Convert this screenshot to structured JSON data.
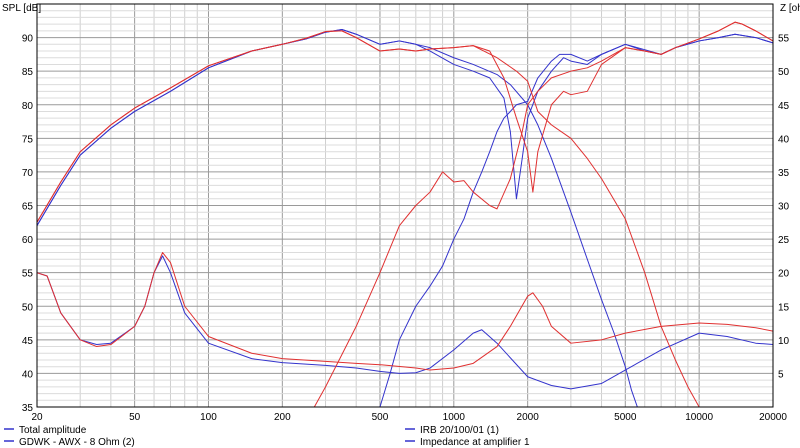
{
  "chart_data": {
    "type": "line",
    "x_scale": "log",
    "xlim": [
      20,
      20000
    ],
    "ylim_left": [
      35,
      95
    ],
    "ylim_right": [
      0,
      60
    ],
    "grid": true,
    "legend_placement": "bottom",
    "left_axis_label": "SPL [dB]",
    "right_axis_label": "Z [ohm]",
    "x_ticks": [
      20,
      50,
      100,
      200,
      500,
      1000,
      2000,
      5000,
      10000,
      20000
    ],
    "x_tick_labels": [
      "20",
      "50",
      "100",
      "200",
      "500",
      "1000",
      "2000",
      "5000",
      "10000",
      "20000"
    ],
    "y_left_ticks": [
      35,
      40,
      45,
      50,
      55,
      60,
      65,
      70,
      75,
      80,
      85,
      90
    ],
    "y_left_tick_labels": [
      "35",
      "40",
      "45",
      "50",
      "55",
      "60",
      "65",
      "70",
      "75",
      "80",
      "85",
      "90"
    ],
    "y_right_ticks": [
      5,
      10,
      15,
      20,
      25,
      30,
      35,
      40,
      45,
      50,
      55
    ],
    "y_right_tick_labels": [
      "5",
      "10",
      "15",
      "20",
      "25",
      "30",
      "35",
      "40",
      "45",
      "50",
      "55"
    ],
    "legend": [
      {
        "name": "Total amplitude",
        "color": "#3333cc"
      },
      {
        "name": "GDWK - AWX - 8 Ohm (2)",
        "color": "#3333cc"
      },
      {
        "name": "IRB 20/100/01 (1)",
        "color": "#3333cc"
      },
      {
        "name": "Impedance at amplifier 1",
        "color": "#3333cc"
      }
    ],
    "series": [
      {
        "color": "#3333cc",
        "axis": "left",
        "points": [
          [
            20,
            62
          ],
          [
            25,
            68
          ],
          [
            30,
            72.5
          ],
          [
            40,
            76.5
          ],
          [
            50,
            79
          ],
          [
            70,
            82
          ],
          [
            100,
            85.5
          ],
          [
            150,
            88
          ],
          [
            200,
            89
          ],
          [
            250,
            89.8
          ],
          [
            300,
            90.8
          ],
          [
            350,
            91.2
          ],
          [
            400,
            90.5
          ],
          [
            500,
            89
          ],
          [
            600,
            89.5
          ],
          [
            700,
            89
          ],
          [
            800,
            88.5
          ],
          [
            1000,
            87
          ],
          [
            1200,
            86
          ],
          [
            1500,
            84.5
          ],
          [
            1700,
            83
          ],
          [
            2000,
            80
          ],
          [
            2200,
            77
          ],
          [
            2500,
            72
          ],
          [
            3000,
            64
          ],
          [
            3500,
            57
          ],
          [
            4000,
            51
          ],
          [
            4500,
            46
          ],
          [
            5000,
            41
          ],
          [
            5300,
            37.5
          ],
          [
            5600,
            35
          ]
        ]
      },
      {
        "color": "#3333cc",
        "axis": "left",
        "points": [
          [
            500,
            35
          ],
          [
            550,
            40
          ],
          [
            600,
            45
          ],
          [
            700,
            50
          ],
          [
            800,
            53
          ],
          [
            900,
            56
          ],
          [
            1000,
            60
          ],
          [
            1100,
            63
          ],
          [
            1200,
            67
          ],
          [
            1300,
            70
          ],
          [
            1400,
            73
          ],
          [
            1500,
            76
          ],
          [
            1600,
            78
          ],
          [
            1700,
            79
          ],
          [
            1800,
            80
          ],
          [
            2000,
            80.5
          ],
          [
            2200,
            84
          ],
          [
            2500,
            86.5
          ],
          [
            2700,
            87.5
          ],
          [
            3000,
            87.5
          ],
          [
            3500,
            86.5
          ],
          [
            4000,
            87.5
          ],
          [
            5000,
            89
          ],
          [
            6000,
            88.2
          ],
          [
            7000,
            87.5
          ],
          [
            8000,
            88.5
          ],
          [
            10000,
            89.5
          ],
          [
            12000,
            90
          ],
          [
            14000,
            90.5
          ],
          [
            17000,
            90
          ],
          [
            20000,
            89.2
          ]
        ]
      },
      {
        "color": "#3333cc",
        "axis": "left",
        "points": [
          [
            20,
            62
          ],
          [
            25,
            68
          ],
          [
            30,
            72.5
          ],
          [
            40,
            76.5
          ],
          [
            50,
            79
          ],
          [
            70,
            82
          ],
          [
            100,
            85.5
          ],
          [
            150,
            88
          ],
          [
            200,
            89
          ],
          [
            250,
            89.8
          ],
          [
            300,
            90.8
          ],
          [
            350,
            91.2
          ],
          [
            400,
            90.5
          ],
          [
            500,
            89
          ],
          [
            600,
            89.5
          ],
          [
            700,
            89
          ],
          [
            800,
            88
          ],
          [
            1000,
            86
          ],
          [
            1200,
            85
          ],
          [
            1400,
            84
          ],
          [
            1600,
            81
          ],
          [
            1700,
            76
          ],
          [
            1800,
            66
          ],
          [
            1900,
            72
          ],
          [
            2000,
            78
          ],
          [
            2200,
            82
          ],
          [
            2500,
            85
          ],
          [
            2800,
            87
          ],
          [
            3000,
            86.5
          ],
          [
            3500,
            86
          ],
          [
            4000,
            87.5
          ],
          [
            5000,
            89
          ],
          [
            6000,
            88
          ],
          [
            7000,
            87.5
          ],
          [
            8000,
            88.5
          ],
          [
            10000,
            89.5
          ],
          [
            12000,
            90
          ],
          [
            14000,
            90.5
          ],
          [
            17000,
            90
          ],
          [
            20000,
            89.2
          ]
        ]
      },
      {
        "color": "#3333cc",
        "axis": "right",
        "points": [
          [
            20,
            20
          ],
          [
            22,
            19.5
          ],
          [
            25,
            14
          ],
          [
            30,
            10
          ],
          [
            35,
            9.3
          ],
          [
            40,
            9.5
          ],
          [
            50,
            12
          ],
          [
            55,
            15
          ],
          [
            60,
            20
          ],
          [
            65,
            22.5
          ],
          [
            70,
            20
          ],
          [
            80,
            14
          ],
          [
            100,
            9.5
          ],
          [
            150,
            7.2
          ],
          [
            200,
            6.6
          ],
          [
            300,
            6.2
          ],
          [
            400,
            5.8
          ],
          [
            500,
            5.3
          ],
          [
            600,
            5
          ],
          [
            700,
            5.1
          ],
          [
            800,
            5.8
          ],
          [
            1000,
            8.5
          ],
          [
            1200,
            11
          ],
          [
            1300,
            11.5
          ],
          [
            1500,
            9.5
          ],
          [
            2000,
            4.5
          ],
          [
            2500,
            3.2
          ],
          [
            3000,
            2.7
          ],
          [
            4000,
            3.5
          ],
          [
            5000,
            5.5
          ],
          [
            7000,
            8.5
          ],
          [
            10000,
            11
          ],
          [
            13000,
            10.5
          ],
          [
            17000,
            9.5
          ],
          [
            20000,
            9.3
          ]
        ]
      },
      {
        "color": "#e03030",
        "axis": "left",
        "points": [
          [
            20,
            62.5
          ],
          [
            25,
            68.5
          ],
          [
            30,
            73
          ],
          [
            40,
            77
          ],
          [
            50,
            79.5
          ],
          [
            70,
            82.5
          ],
          [
            100,
            85.8
          ],
          [
            150,
            88
          ],
          [
            200,
            89
          ],
          [
            250,
            89.9
          ],
          [
            300,
            90.9
          ],
          [
            350,
            91
          ],
          [
            400,
            90
          ],
          [
            500,
            88
          ],
          [
            600,
            88.3
          ],
          [
            700,
            88
          ],
          [
            800,
            88.3
          ],
          [
            1000,
            88.5
          ],
          [
            1200,
            88.8
          ],
          [
            1500,
            87
          ],
          [
            1800,
            85
          ],
          [
            2000,
            83.5
          ],
          [
            2200,
            79
          ],
          [
            2500,
            77
          ],
          [
            3000,
            75
          ],
          [
            3500,
            72
          ],
          [
            4000,
            69
          ],
          [
            5000,
            63
          ],
          [
            6000,
            55
          ],
          [
            7000,
            47
          ],
          [
            8000,
            42
          ],
          [
            9000,
            38
          ],
          [
            10000,
            35
          ]
        ]
      },
      {
        "color": "#e03030",
        "axis": "left",
        "points": [
          [
            270,
            35
          ],
          [
            300,
            38
          ],
          [
            400,
            47
          ],
          [
            500,
            55
          ],
          [
            600,
            62
          ],
          [
            700,
            65
          ],
          [
            800,
            67
          ],
          [
            900,
            70
          ],
          [
            1000,
            68.5
          ],
          [
            1100,
            68.7
          ],
          [
            1200,
            67
          ],
          [
            1400,
            65
          ],
          [
            1500,
            64.5
          ],
          [
            1700,
            69
          ],
          [
            1900,
            76
          ],
          [
            2000,
            80
          ],
          [
            2200,
            82
          ],
          [
            2500,
            84
          ],
          [
            3000,
            85
          ],
          [
            3500,
            85.5
          ],
          [
            4000,
            86.5
          ],
          [
            5000,
            88.5
          ],
          [
            6000,
            88
          ],
          [
            7000,
            87.5
          ],
          [
            8000,
            88.5
          ],
          [
            10000,
            89.8
          ],
          [
            12000,
            91
          ],
          [
            14000,
            92.3
          ],
          [
            15000,
            92
          ],
          [
            17000,
            91
          ],
          [
            20000,
            89.5
          ]
        ]
      },
      {
        "color": "#e03030",
        "axis": "left",
        "points": [
          [
            20,
            62.5
          ],
          [
            25,
            68.5
          ],
          [
            30,
            73
          ],
          [
            40,
            77
          ],
          [
            50,
            79.5
          ],
          [
            70,
            82.5
          ],
          [
            100,
            85.8
          ],
          [
            150,
            88
          ],
          [
            200,
            89
          ],
          [
            250,
            89.9
          ],
          [
            300,
            90.9
          ],
          [
            350,
            91
          ],
          [
            400,
            90
          ],
          [
            500,
            88
          ],
          [
            600,
            88.3
          ],
          [
            700,
            88
          ],
          [
            800,
            88.3
          ],
          [
            1000,
            88.5
          ],
          [
            1200,
            88.8
          ],
          [
            1400,
            88
          ],
          [
            1600,
            84
          ],
          [
            1800,
            78
          ],
          [
            2000,
            73
          ],
          [
            2100,
            67
          ],
          [
            2200,
            73
          ],
          [
            2500,
            80
          ],
          [
            2800,
            82
          ],
          [
            3000,
            81.5
          ],
          [
            3500,
            82
          ],
          [
            4000,
            86
          ],
          [
            5000,
            88.5
          ],
          [
            6000,
            88
          ],
          [
            7000,
            87.5
          ],
          [
            8000,
            88.5
          ],
          [
            10000,
            89.8
          ],
          [
            12000,
            91
          ],
          [
            14000,
            92.3
          ],
          [
            15000,
            92
          ],
          [
            17000,
            91
          ],
          [
            20000,
            89.5
          ]
        ]
      },
      {
        "color": "#e03030",
        "axis": "right",
        "points": [
          [
            20,
            20
          ],
          [
            22,
            19.5
          ],
          [
            25,
            14
          ],
          [
            30,
            10
          ],
          [
            35,
            9
          ],
          [
            40,
            9.3
          ],
          [
            50,
            12
          ],
          [
            55,
            15
          ],
          [
            60,
            20
          ],
          [
            65,
            23
          ],
          [
            70,
            21.5
          ],
          [
            80,
            15
          ],
          [
            100,
            10.5
          ],
          [
            150,
            8
          ],
          [
            200,
            7.2
          ],
          [
            300,
            6.8
          ],
          [
            400,
            6.5
          ],
          [
            500,
            6.3
          ],
          [
            700,
            5.8
          ],
          [
            800,
            5.5
          ],
          [
            1000,
            5.8
          ],
          [
            1200,
            6.5
          ],
          [
            1500,
            9
          ],
          [
            1700,
            12
          ],
          [
            2000,
            16.5
          ],
          [
            2100,
            17
          ],
          [
            2300,
            15
          ],
          [
            2500,
            12
          ],
          [
            3000,
            9.5
          ],
          [
            4000,
            10
          ],
          [
            5000,
            11
          ],
          [
            7000,
            12
          ],
          [
            10000,
            12.5
          ],
          [
            13000,
            12.3
          ],
          [
            17000,
            11.8
          ],
          [
            20000,
            11.3
          ]
        ]
      }
    ]
  }
}
